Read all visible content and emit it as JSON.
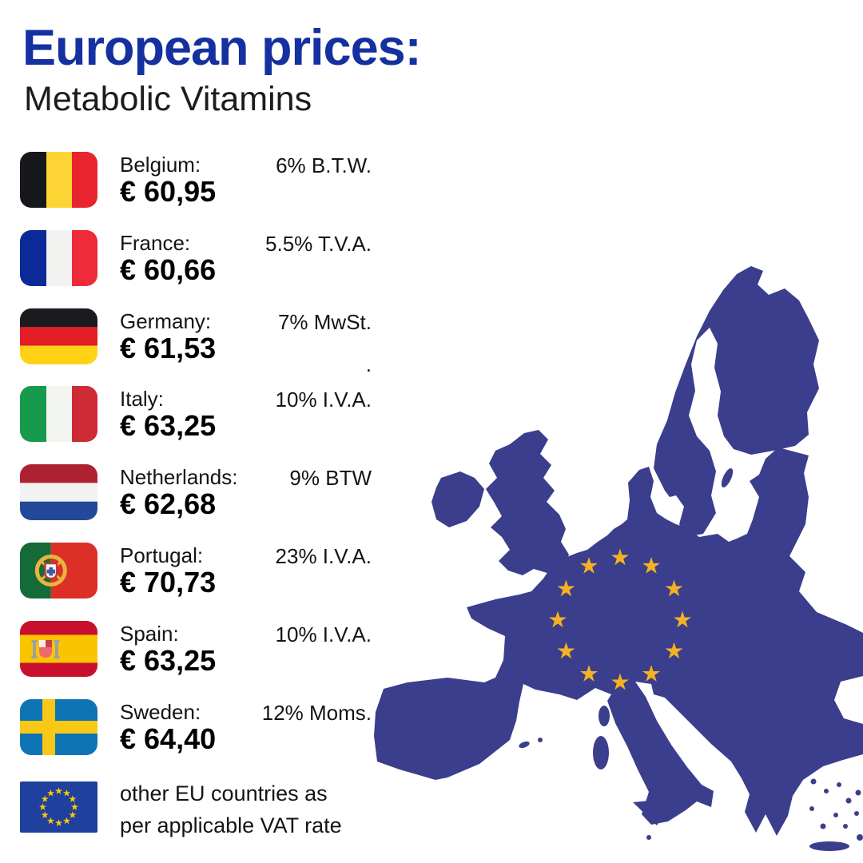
{
  "header": {
    "title": "European prices:",
    "subtitle": "Metabolic Vitamins",
    "title_color": "#14319F"
  },
  "price_list": {
    "rows": [
      {
        "country": "Belgium:",
        "price": "€ 60,95",
        "vat": "6% B.T.W.",
        "vat_line2": "",
        "flag": "belgium-flag"
      },
      {
        "country": "France:",
        "price": "€ 60,66",
        "vat": "5.5% T.V.A.",
        "vat_line2": "",
        "flag": "france-flag"
      },
      {
        "country": "Germany:",
        "price": "€ 61,53",
        "vat": "7% MwSt.",
        "vat_line2": ".",
        "flag": "germany-flag"
      },
      {
        "country": "Italy:",
        "price": "€ 63,25",
        "vat": "10% I.V.A.",
        "vat_line2": "",
        "flag": "italy-flag"
      },
      {
        "country": "Netherlands:",
        "price": "€ 62,68",
        "vat": "9% BTW",
        "vat_line2": "",
        "flag": "netherlands-flag"
      },
      {
        "country": "Portugal:",
        "price": "€ 70,73",
        "vat": "23% I.V.A.",
        "vat_line2": "",
        "flag": "portugal-flag"
      },
      {
        "country": "Spain:",
        "price": "€ 63,25",
        "vat": "10% I.V.A.",
        "vat_line2": "",
        "flag": "spain-flag"
      },
      {
        "country": "Sweden:",
        "price": "€ 64,40",
        "vat": "12% Moms.",
        "vat_line2": "",
        "flag": "sweden-flag"
      }
    ]
  },
  "footer_note": {
    "line1": "other EU countries as",
    "line2": "per applicable VAT rate",
    "flag": "eu-flag"
  },
  "map": {
    "region": "European Union",
    "fill_color": "#3B3E8C",
    "star_color": "#F4B223",
    "star_count": 12
  }
}
